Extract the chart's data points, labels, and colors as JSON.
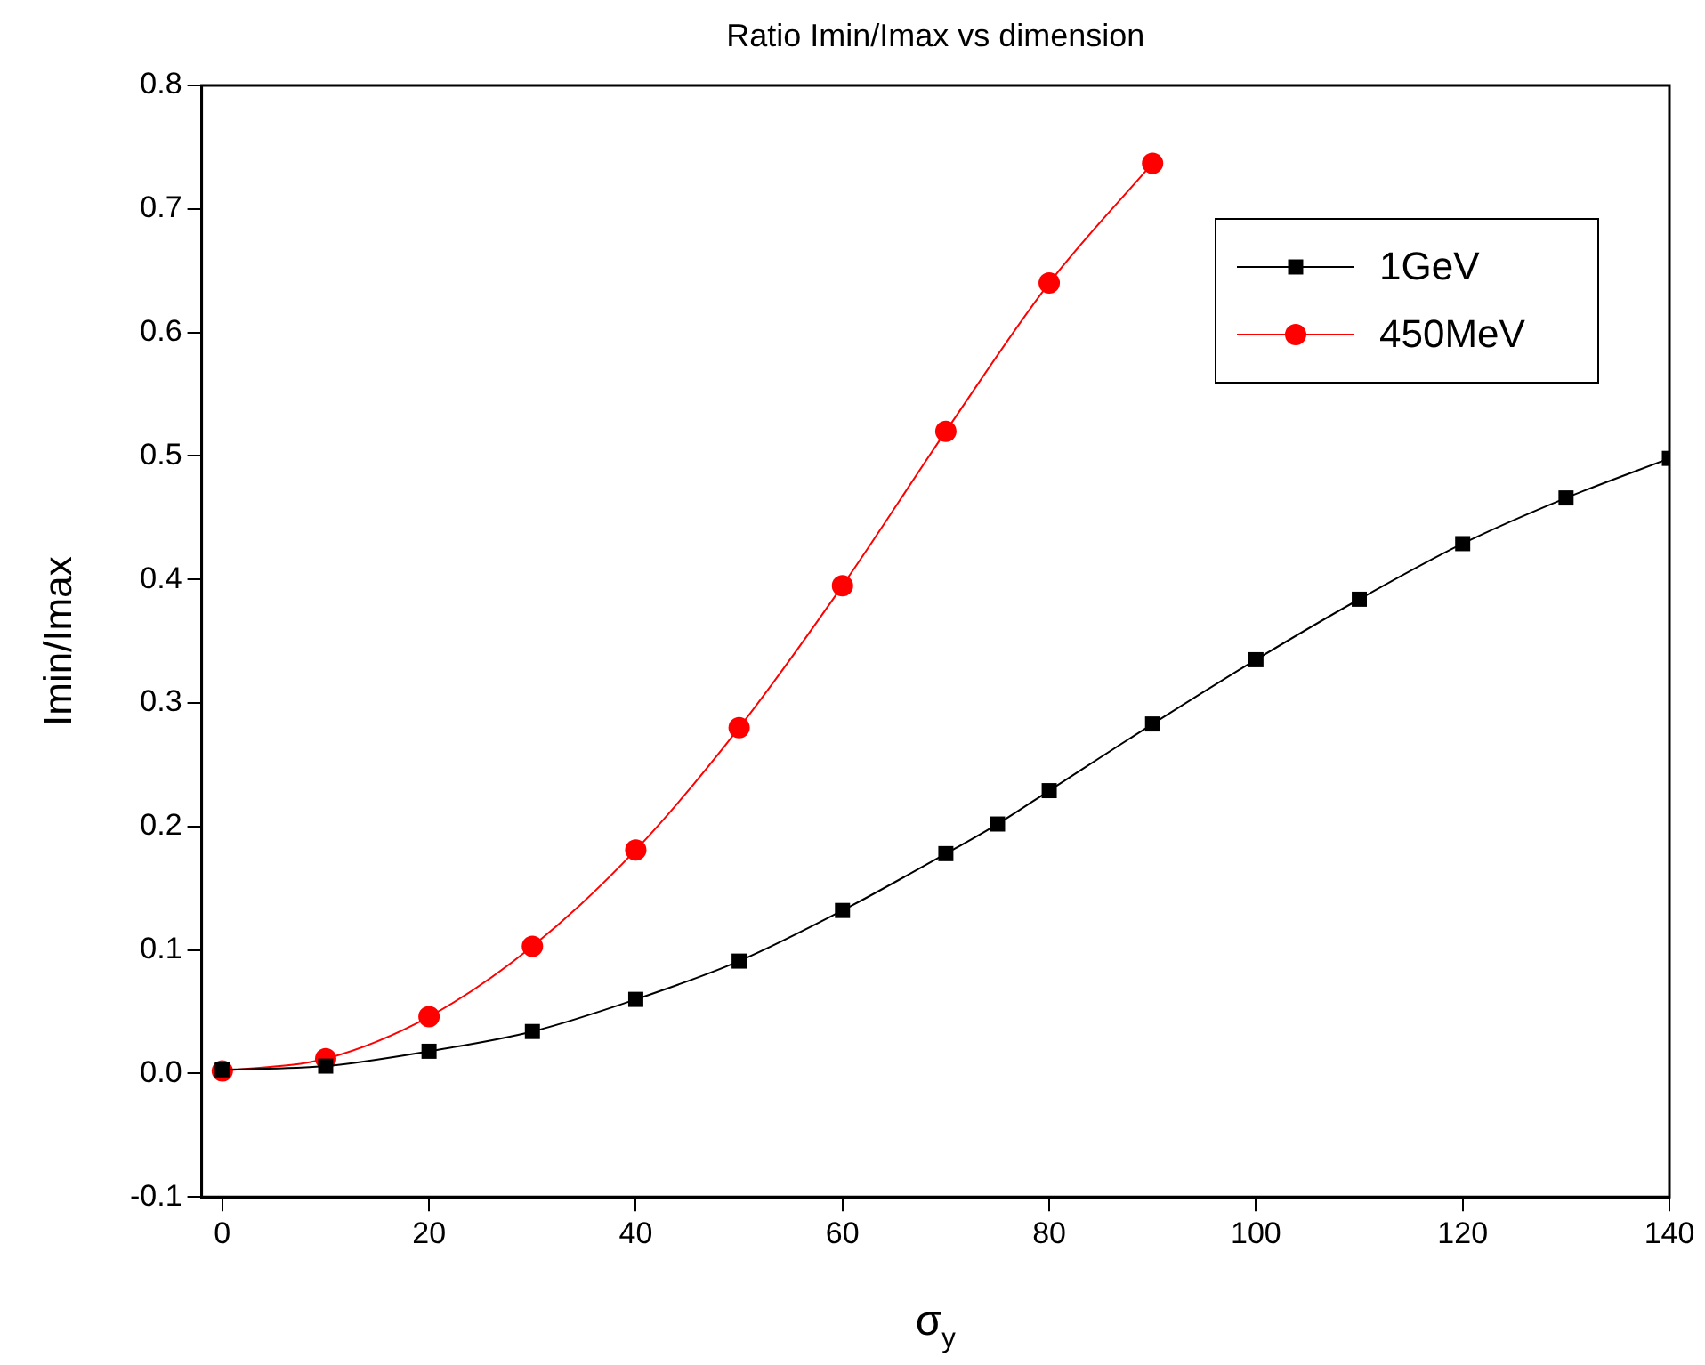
{
  "chart_data": {
    "type": "line",
    "title": "Ratio Imin/Imax vs dimension",
    "xlabel": "σ$_{y}$",
    "ylabel": "Imin/Imax",
    "xlim": [
      -2,
      140
    ],
    "xticks": [
      0,
      20,
      40,
      60,
      80,
      100,
      120,
      140
    ],
    "ylim": [
      -0.1,
      0.8
    ],
    "yticks": [
      -0.1,
      {
        "value": 0,
        "label": "0.0"
      },
      0.1,
      0.2,
      0.3,
      0.4,
      0.5,
      0.6,
      0.7,
      0.8
    ],
    "grid": false,
    "legend": "top right",
    "line_style": "solid",
    "series": [
      {
        "name": "1GeV",
        "color": "#000000",
        "marker": "square",
        "x": [
          0,
          10,
          20,
          30,
          40,
          50,
          60,
          70,
          75,
          80,
          90,
          100,
          110,
          120,
          130,
          140
        ],
        "values": [
          0.003,
          0.006,
          0.018,
          0.034,
          0.06,
          0.091,
          0.132,
          0.178,
          0.202,
          0.229,
          0.283,
          0.335,
          0.384,
          0.429,
          0.466,
          0.498
        ]
      },
      {
        "name": "450MeV",
        "color": "#ff0000",
        "marker": "circle",
        "x": [
          0,
          10,
          20,
          30,
          40,
          50,
          60,
          70,
          80,
          90
        ],
        "values": [
          0.002,
          0.012,
          0.046,
          0.103,
          0.181,
          0.28,
          0.395,
          0.52,
          0.64,
          0.737
        ]
      }
    ]
  }
}
